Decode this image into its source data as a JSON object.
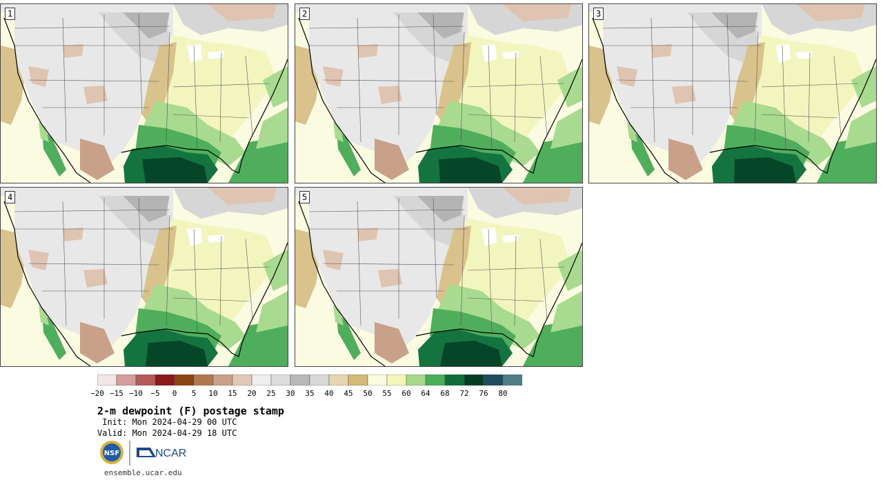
{
  "panels": [
    {
      "label": "1"
    },
    {
      "label": "2"
    },
    {
      "label": "3"
    },
    {
      "label": "4"
    },
    {
      "label": "5"
    }
  ],
  "colorbar": {
    "ticks": [
      "−20",
      "−15",
      "−10",
      "−5",
      "0",
      "5",
      "10",
      "15",
      "20",
      "25",
      "30",
      "35",
      "40",
      "45",
      "50",
      "55",
      "60",
      "64",
      "68",
      "72",
      "76",
      "80"
    ],
    "colors": [
      "#f3e6e6",
      "#d49c9c",
      "#b45a5a",
      "#8c1a1a",
      "#8b4513",
      "#b07850",
      "#c9a088",
      "#e2c8b6",
      "#eeeeee",
      "#dddddd",
      "#b8b8b8",
      "#d8d8d8",
      "#e5d5b0",
      "#d6b978",
      "#fbfbe0",
      "#f4f5b8",
      "#a6d98c",
      "#4aad5a",
      "#0f6e38",
      "#053d24",
      "#1c4e5e",
      "#4e7f86"
    ]
  },
  "title": "2-m dewpoint (F) postage stamp",
  "init": " Init: Mon 2024-04-29 00 UTC",
  "valid": "Valid: Mon 2024-04-29 18 UTC",
  "logos": {
    "nsf": "NSF",
    "ncar": "NCAR"
  },
  "url": "ensemble.ucar.edu"
}
